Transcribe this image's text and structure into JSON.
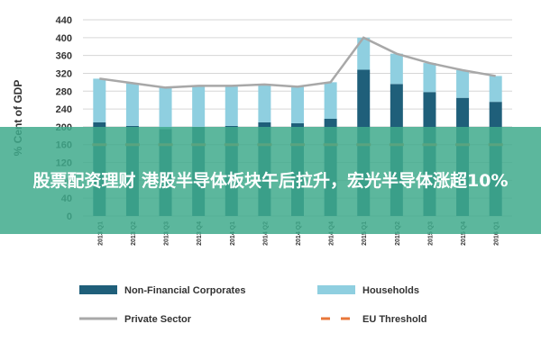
{
  "chart_data": {
    "type": "bar",
    "categories": [
      "2013 Q1",
      "2013 Q2",
      "2013 Q3",
      "2013 Q4",
      "2014 Q1",
      "2014 Q2",
      "2014 Q3",
      "2014 Q4",
      "2015 Q1",
      "2015 Q2",
      "2015 Q3",
      "2015 Q4",
      "2016 Q1"
    ],
    "series": [
      {
        "name": "Non-Financial Corporates",
        "type": "bar",
        "stacked": true,
        "color": "#1f5f7a",
        "values": [
          210,
          202,
          195,
          200,
          202,
          210,
          208,
          218,
          328,
          296,
          278,
          265,
          256
        ]
      },
      {
        "name": "Households",
        "type": "bar",
        "stacked": true,
        "color": "#8fcfe0",
        "values": [
          98,
          96,
          93,
          92,
          90,
          85,
          82,
          82,
          72,
          68,
          65,
          62,
          58
        ]
      },
      {
        "name": "Private Sector",
        "type": "line",
        "color": "#a8a8a8",
        "values": [
          308,
          298,
          288,
          292,
          292,
          295,
          290,
          300,
          400,
          364,
          343,
          327,
          314
        ]
      },
      {
        "name": "EU Threshold",
        "type": "line",
        "dashed": true,
        "color": "#e8773a",
        "values": [
          160,
          160,
          160,
          160,
          160,
          160,
          160,
          160,
          160,
          160,
          160,
          160,
          160
        ]
      }
    ],
    "ylabel": "% Cent of GDP",
    "xlabel": "",
    "ylim": [
      0,
      440
    ],
    "yticks": [
      0,
      40,
      80,
      120,
      160,
      200,
      240,
      280,
      320,
      360,
      400,
      440
    ],
    "grid": true,
    "legend_position": "bottom"
  },
  "overlay": {
    "banner_text": "股票配资理财 港股半导体板块午后拉升，宏光半导体涨超10%",
    "banner_color": "#40aa8c"
  }
}
